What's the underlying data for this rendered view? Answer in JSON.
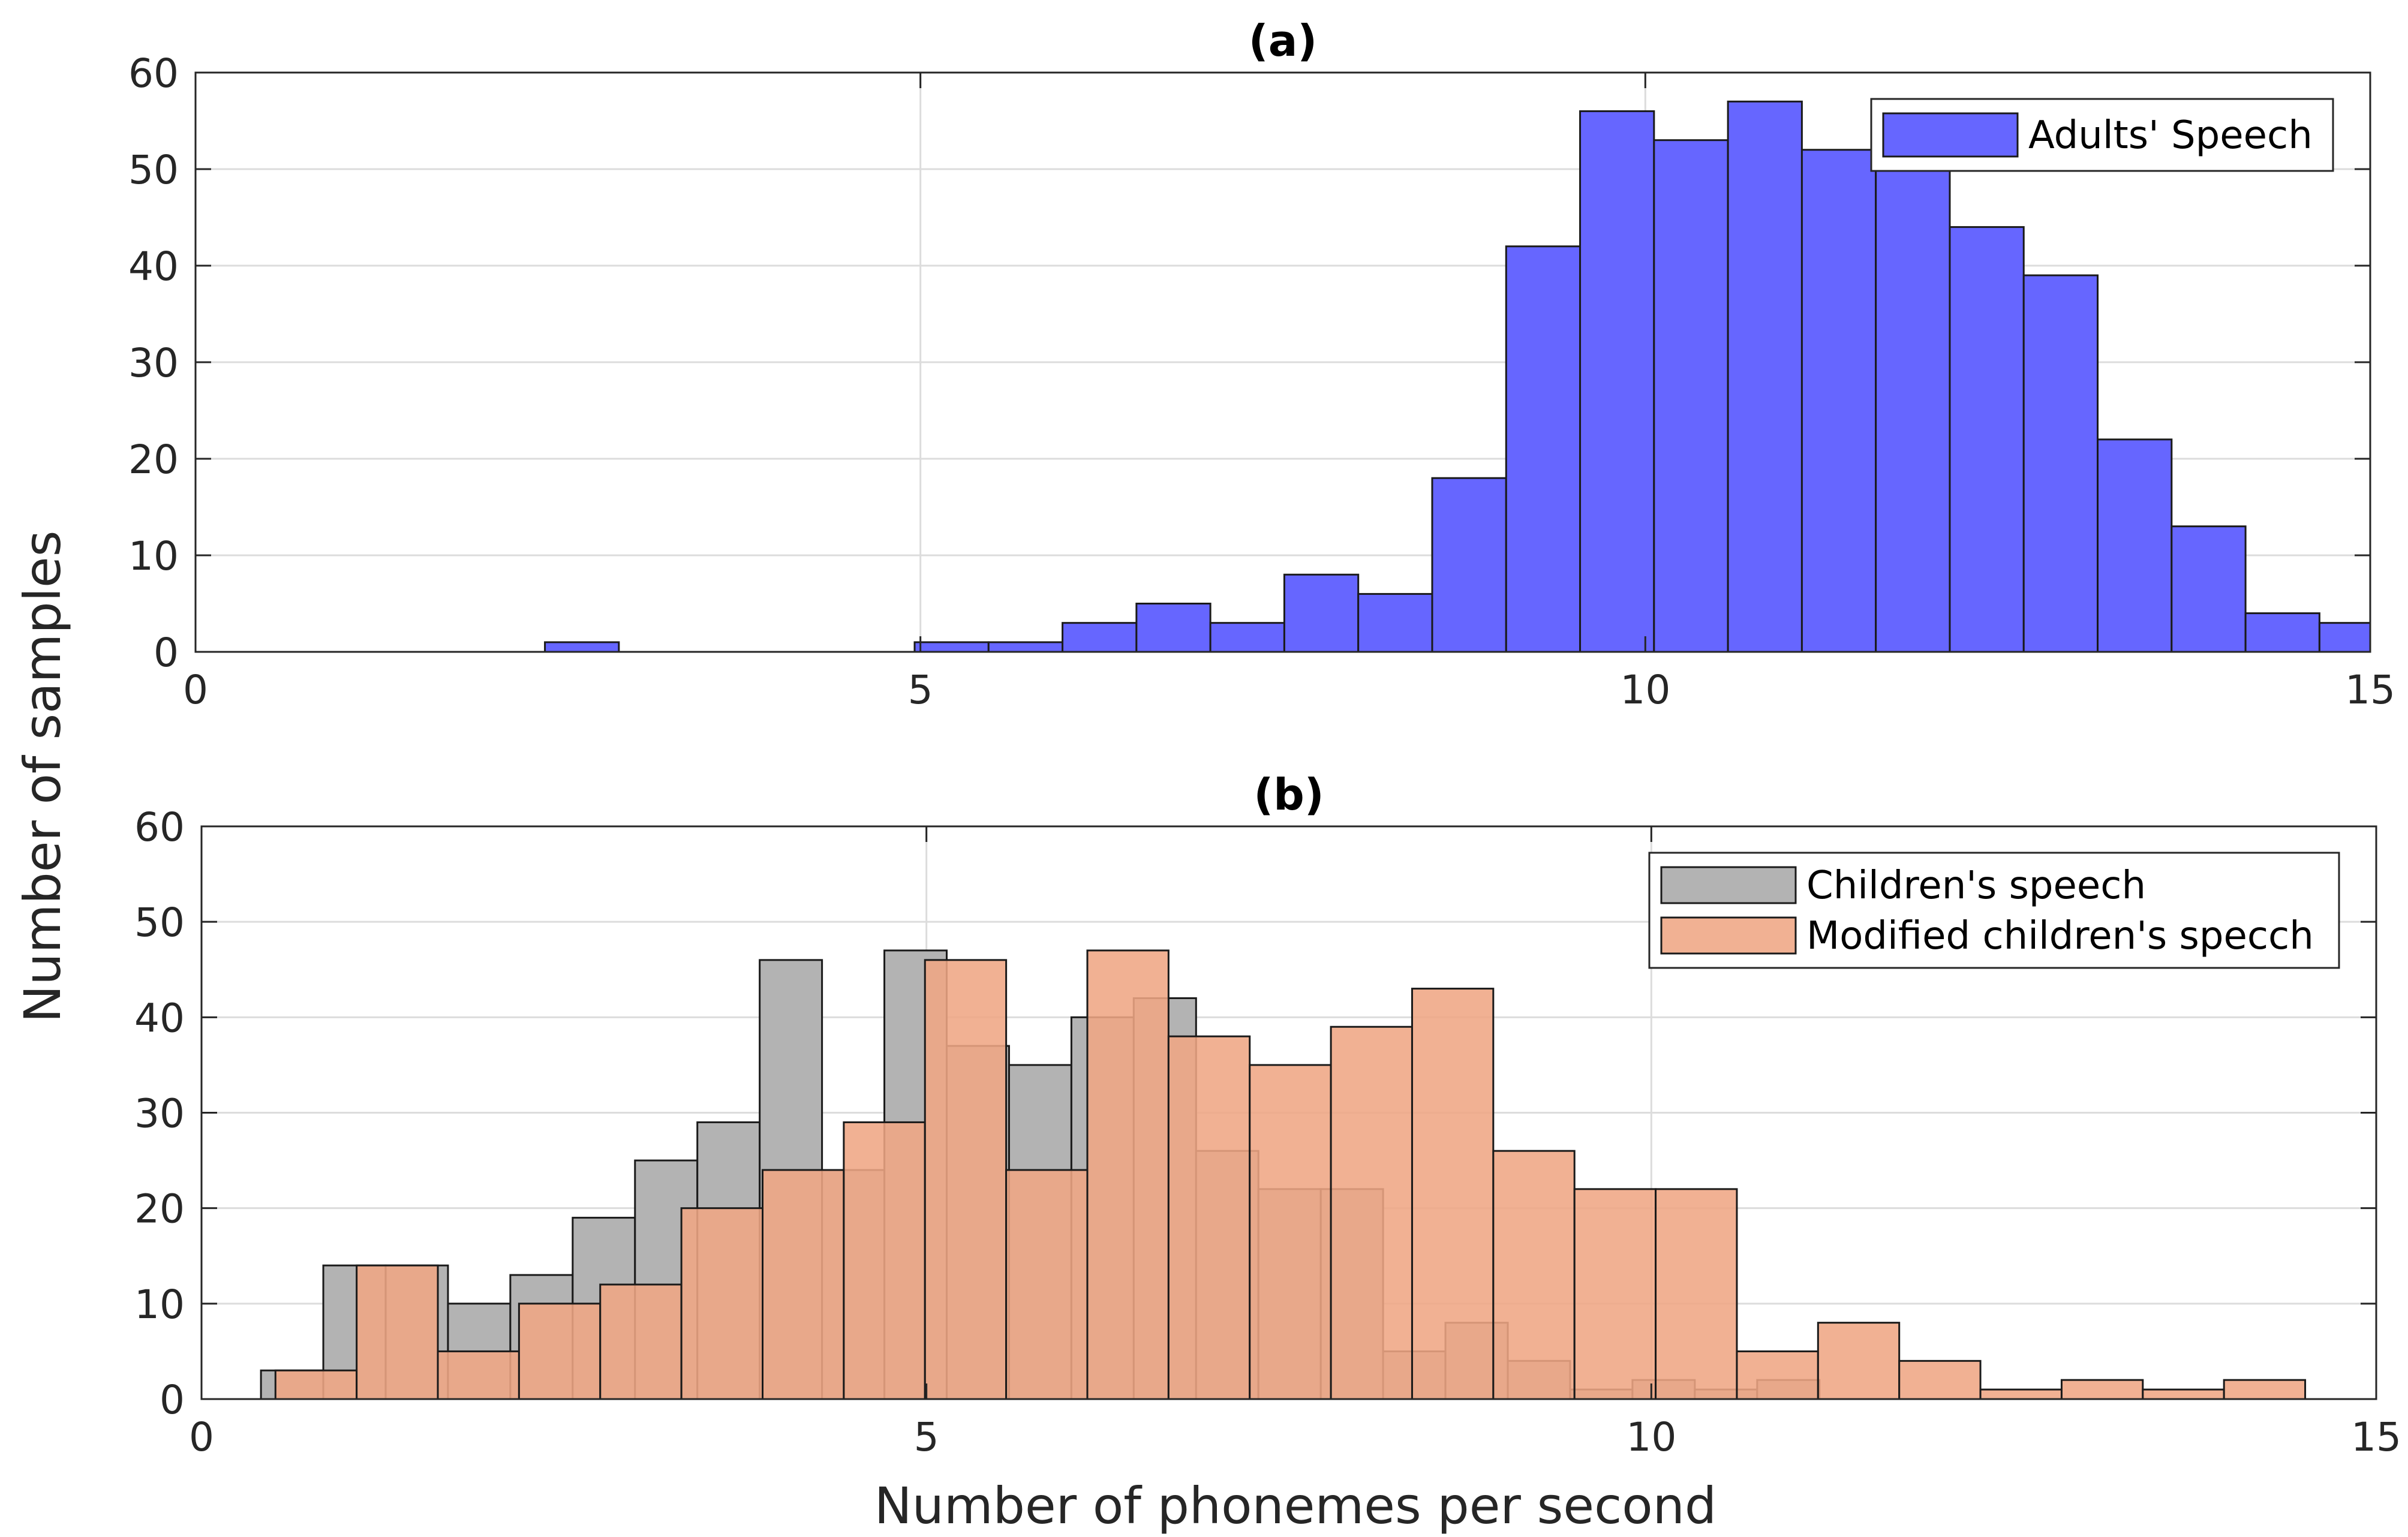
{
  "figure": {
    "ylabel": "Number of samples",
    "xlabel": "Number of phonemes per second"
  },
  "colors": {
    "adults": "#6666ff",
    "children": "#b3b3b3",
    "modified": "#efa684",
    "edge": "#1a1a1a",
    "grid": "#dcdcdc"
  },
  "chart_data": [
    {
      "type": "bar",
      "title": "(a)",
      "xlim": [
        0,
        15
      ],
      "ylim": [
        0,
        60
      ],
      "xticks": [
        0,
        5,
        10,
        15
      ],
      "yticks": [
        0,
        10,
        20,
        30,
        40,
        50,
        60
      ],
      "grid": true,
      "legend_position": "top-right",
      "series": [
        {
          "name": "Adults' Speech",
          "bin_edges": [
            2.41,
            2.92,
            3.43,
            3.94,
            4.45,
            4.96,
            5.47,
            5.98,
            6.49,
            7.0,
            7.51,
            8.02,
            8.53,
            9.04,
            9.55,
            10.06,
            10.57,
            11.08,
            11.59,
            12.1,
            12.61,
            13.12,
            13.63,
            14.14,
            14.65,
            15.0
          ],
          "values": [
            1,
            0,
            0,
            0,
            0,
            1,
            1,
            3,
            5,
            3,
            8,
            6,
            18,
            42,
            56,
            53,
            57,
            52,
            51,
            44,
            39,
            22,
            13,
            4,
            3
          ]
        }
      ]
    },
    {
      "type": "bar",
      "title": "(b)",
      "xlim": [
        0,
        15
      ],
      "ylim": [
        0,
        60
      ],
      "xticks": [
        0,
        5,
        10,
        15
      ],
      "yticks": [
        0,
        10,
        20,
        30,
        40,
        50,
        60
      ],
      "grid": true,
      "legend_position": "top-right",
      "series": [
        {
          "name": "Children's speech",
          "bin_edges": [
            0.41,
            0.84,
            1.27,
            1.7,
            2.13,
            2.56,
            2.99,
            3.42,
            3.85,
            4.28,
            4.71,
            5.14,
            5.57,
            6.0,
            6.43,
            6.86,
            7.29,
            7.72,
            8.15,
            8.58,
            9.01,
            9.44,
            9.87,
            10.3,
            10.73,
            11.16
          ],
          "values": [
            3,
            14,
            14,
            10,
            13,
            19,
            25,
            29,
            46,
            24,
            47,
            37,
            35,
            40,
            42,
            26,
            22,
            22,
            5,
            8,
            4,
            1,
            2,
            1,
            2
          ]
        },
        {
          "name": "Modified children's specch",
          "bin_edges": [
            0.51,
            1.07,
            1.63,
            2.19,
            2.75,
            3.31,
            3.87,
            4.43,
            4.99,
            5.55,
            6.11,
            6.67,
            7.23,
            7.79,
            8.35,
            8.91,
            9.47,
            10.03,
            10.59,
            11.15,
            11.71,
            12.27,
            12.83,
            13.39,
            13.95,
            14.51
          ],
          "values": [
            3,
            14,
            5,
            10,
            12,
            20,
            24,
            29,
            46,
            24,
            47,
            38,
            35,
            39,
            43,
            26,
            22,
            22,
            5,
            8,
            4,
            1,
            2,
            1,
            2
          ]
        }
      ]
    }
  ]
}
